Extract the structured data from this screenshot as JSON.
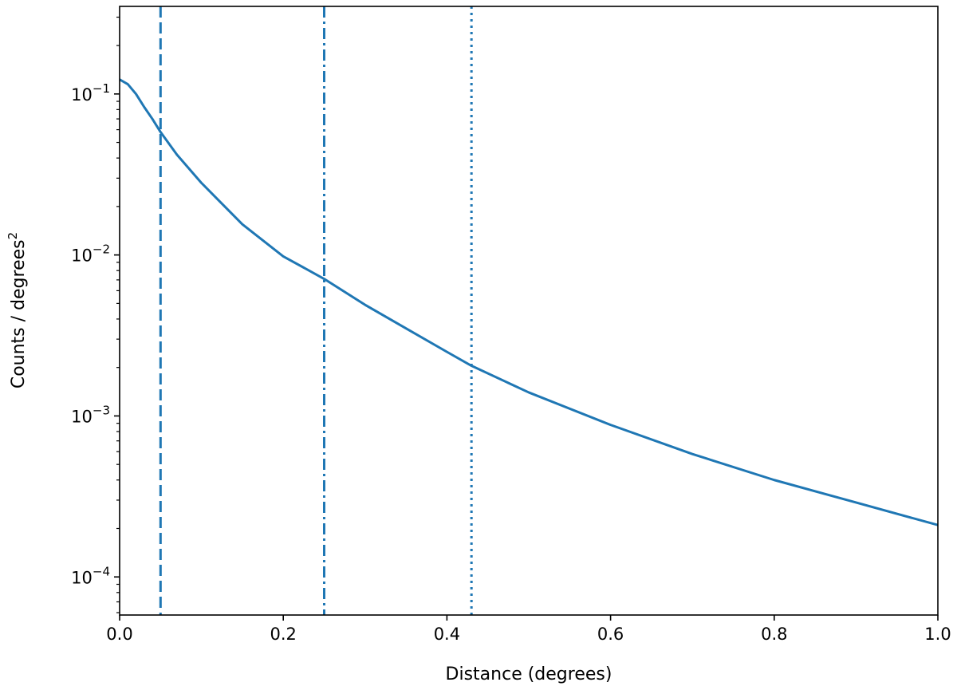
{
  "chart_data": {
    "type": "line",
    "title": "",
    "xlabel": "Distance (degrees)",
    "ylabel": "Counts / degrees",
    "ylabel_superscript": "2",
    "xscale": "linear",
    "yscale": "log",
    "xlim": [
      0.0,
      1.0
    ],
    "ylim": [
      5.8e-05,
      0.35
    ],
    "grid": false,
    "legend": "none",
    "line_color": "#1f77b4",
    "x_ticks": [
      {
        "value": 0.0,
        "label": "0.0"
      },
      {
        "value": 0.2,
        "label": "0.2"
      },
      {
        "value": 0.4,
        "label": "0.4"
      },
      {
        "value": 0.6,
        "label": "0.6"
      },
      {
        "value": 0.8,
        "label": "0.8"
      },
      {
        "value": 1.0,
        "label": "1.0"
      }
    ],
    "y_ticks": [
      {
        "value": 0.1,
        "base": "10",
        "exp": "−1"
      },
      {
        "value": 0.01,
        "base": "10",
        "exp": "−2"
      },
      {
        "value": 0.001,
        "base": "10",
        "exp": "−3"
      },
      {
        "value": 0.0001,
        "base": "10",
        "exp": "−4"
      }
    ],
    "series": [
      {
        "x": [
          0.0,
          0.01,
          0.02,
          0.03,
          0.04,
          0.05,
          0.07,
          0.1,
          0.15,
          0.2,
          0.25,
          0.3,
          0.35,
          0.4,
          0.43,
          0.5,
          0.6,
          0.7,
          0.8,
          0.9,
          1.0
        ],
        "y": [
          0.123,
          0.115,
          0.1,
          0.083,
          0.07,
          0.058,
          0.042,
          0.028,
          0.0155,
          0.0098,
          0.0071,
          0.0049,
          0.0035,
          0.0025,
          0.00205,
          0.0014,
          0.00088,
          0.00058,
          0.0004,
          0.00029,
          0.00021
        ]
      }
    ],
    "vlines": [
      {
        "x": 0.05,
        "style": "dashed"
      },
      {
        "x": 0.25,
        "style": "dashdot"
      },
      {
        "x": 0.43,
        "style": "dotted"
      }
    ]
  }
}
